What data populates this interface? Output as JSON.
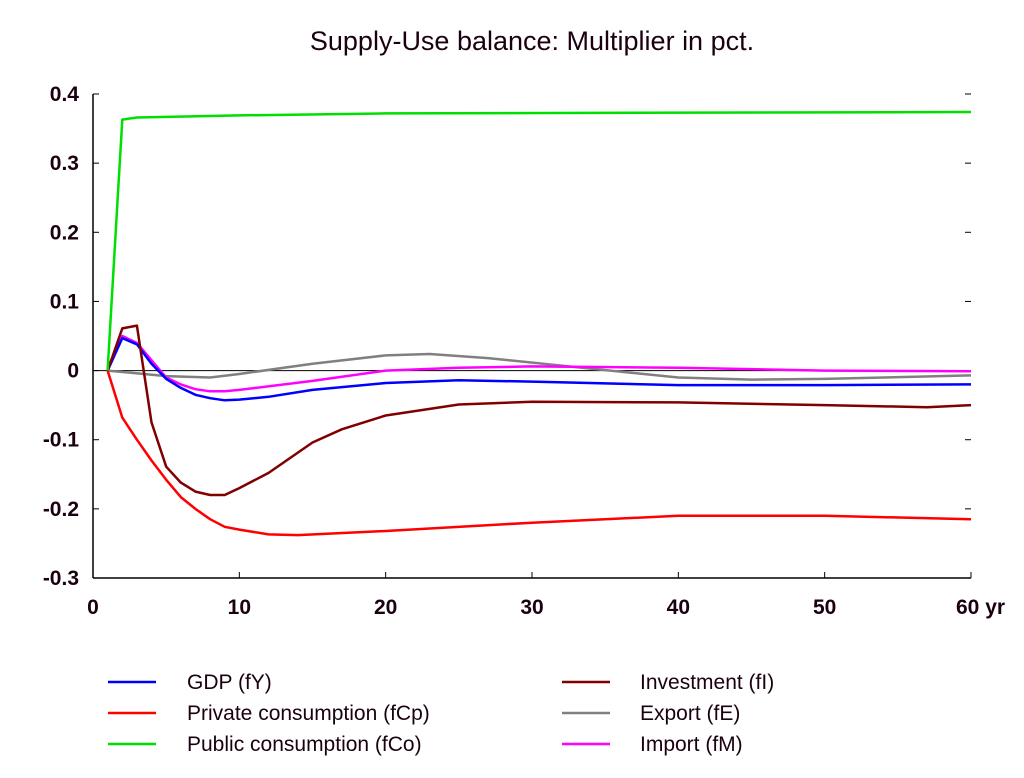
{
  "chart_data": {
    "type": "line",
    "title": "Supply-Use balance: Multiplier in pct.",
    "xlabel": "yr",
    "ylabel": "",
    "xlim": [
      0,
      60
    ],
    "ylim": [
      -0.3,
      0.4
    ],
    "x_ticks": [
      0,
      10,
      20,
      30,
      40,
      50,
      60
    ],
    "x_tick_labels": [
      "0",
      "10",
      "20",
      "30",
      "40",
      "50",
      "60 yr"
    ],
    "y_ticks": [
      0.4,
      0.3,
      0.2,
      0.1,
      0,
      -0.1,
      -0.2,
      -0.3
    ],
    "y_tick_labels": [
      "0.4",
      "0.3",
      "0.2",
      "0.1",
      "0",
      "-0.1",
      "-0.2",
      "-0.3"
    ],
    "grid": false,
    "legend_placement": "bottom",
    "series": [
      {
        "name": "GDP (fY)",
        "color": "#0000ff",
        "x": [
          1,
          2,
          3,
          4,
          5,
          6,
          7,
          8,
          9,
          10,
          12,
          15,
          20,
          25,
          30,
          40,
          50,
          60
        ],
        "y": [
          0,
          0.047,
          0.038,
          0.01,
          -0.012,
          -0.025,
          -0.035,
          -0.04,
          -0.043,
          -0.042,
          -0.038,
          -0.028,
          -0.018,
          -0.014,
          -0.016,
          -0.021,
          -0.021,
          -0.02
        ]
      },
      {
        "name": "Private consumption (fCp)",
        "color": "#ff0000",
        "x": [
          1,
          2,
          3,
          4,
          5,
          6,
          7,
          8,
          9,
          10,
          12,
          14,
          20,
          30,
          40,
          50,
          60
        ],
        "y": [
          0,
          -0.068,
          -0.1,
          -0.13,
          -0.158,
          -0.183,
          -0.2,
          -0.215,
          -0.226,
          -0.23,
          -0.237,
          -0.238,
          -0.232,
          -0.22,
          -0.21,
          -0.21,
          -0.215
        ]
      },
      {
        "name": "Public consumption (fCo)",
        "color": "#00e000",
        "x": [
          1,
          2,
          3,
          10,
          20,
          60
        ],
        "y": [
          0,
          0.363,
          0.366,
          0.369,
          0.372,
          0.374
        ]
      },
      {
        "name": "Investment (fI)",
        "color": "#800000",
        "x": [
          1,
          2,
          3,
          4,
          5,
          6,
          7,
          8,
          9,
          10,
          12,
          15,
          17,
          20,
          25,
          30,
          40,
          50,
          57,
          60
        ],
        "y": [
          0,
          0.061,
          0.065,
          -0.075,
          -0.139,
          -0.162,
          -0.175,
          -0.18,
          -0.18,
          -0.17,
          -0.148,
          -0.104,
          -0.085,
          -0.065,
          -0.049,
          -0.045,
          -0.046,
          -0.05,
          -0.053,
          -0.05
        ]
      },
      {
        "name": "Export (fE)",
        "color": "#808080",
        "x": [
          1,
          5,
          8,
          10,
          15,
          20,
          23,
          27,
          33,
          40,
          45,
          50,
          60
        ],
        "y": [
          0,
          -0.008,
          -0.01,
          -0.005,
          0.01,
          0.022,
          0.024,
          0.018,
          0.005,
          -0.01,
          -0.013,
          -0.012,
          -0.007
        ]
      },
      {
        "name": "Import (fM)",
        "color": "#ff00ff",
        "x": [
          1,
          2,
          3,
          4,
          5,
          6,
          7,
          8,
          9,
          10,
          15,
          20,
          25,
          30,
          40,
          50,
          60
        ],
        "y": [
          0,
          0.05,
          0.04,
          0.015,
          -0.01,
          -0.02,
          -0.027,
          -0.03,
          -0.03,
          -0.028,
          -0.015,
          0,
          0.004,
          0.006,
          0.004,
          0,
          -0.001
        ]
      }
    ]
  }
}
